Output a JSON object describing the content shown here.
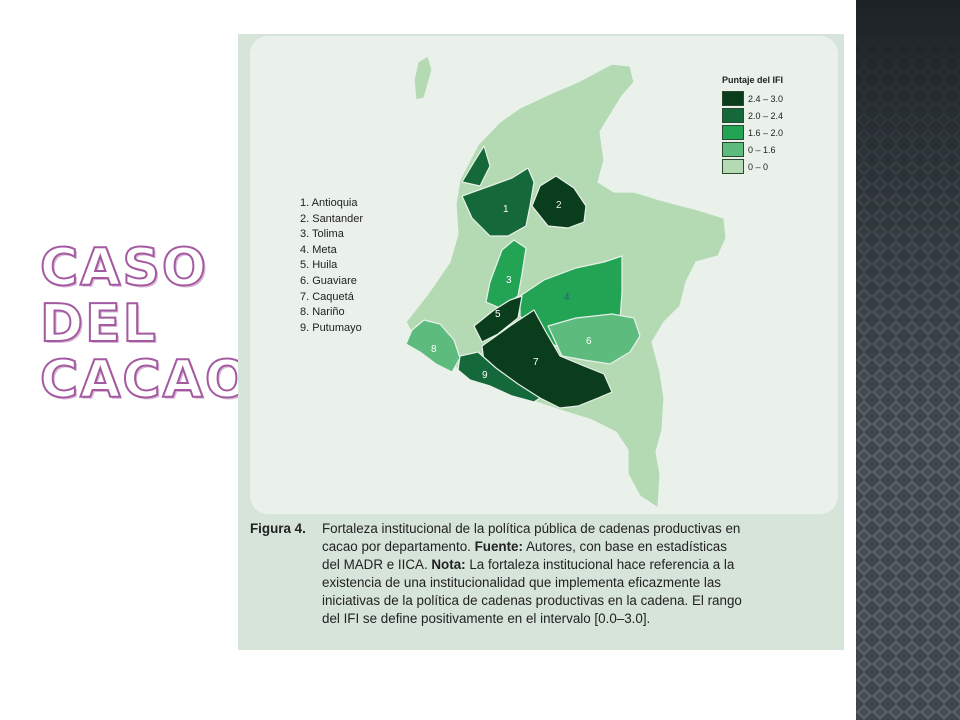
{
  "slide": {
    "title": "Caso del cacao"
  },
  "figure": {
    "legend": {
      "title": "Puntaje del IFI",
      "items": [
        {
          "label": "2.4 – 3.0",
          "color": "#0a3d1c"
        },
        {
          "label": "2.0 – 2.4",
          "color": "#15683a"
        },
        {
          "label": "1.6 – 2.0",
          "color": "#23a354"
        },
        {
          "label": "0 – 1.6",
          "color": "#5dbc7d"
        },
        {
          "label": "0 – 0",
          "color": "#b3dab3"
        }
      ]
    },
    "departments": [
      "1. Antioquia",
      "2. Santander",
      "3. Tolima",
      "4. Meta",
      "5. Huila",
      "6. Guaviare",
      "7. Caquetá",
      "8. Nariño",
      "9. Putumayo"
    ],
    "map_labels": [
      "1",
      "2",
      "3",
      "4",
      "5",
      "6",
      "7",
      "8",
      "9"
    ],
    "caption": {
      "label": "Figura 4.",
      "lines": [
        "Fortaleza institucional de la política pública de cadenas productivas en",
        "cacao por departamento. Fuente: Autores, con base en estadísticas",
        "del MADR e IICA. Nota: La fortaleza institucional hace referencia a la",
        "existencia de una institucionalidad que implementa eficazmente las",
        "iniciativas de la política de cadenas productivas en la cadena. El rango",
        "del IFI se define positivamente en el intervalo [0.0–3.0]."
      ]
    }
  }
}
